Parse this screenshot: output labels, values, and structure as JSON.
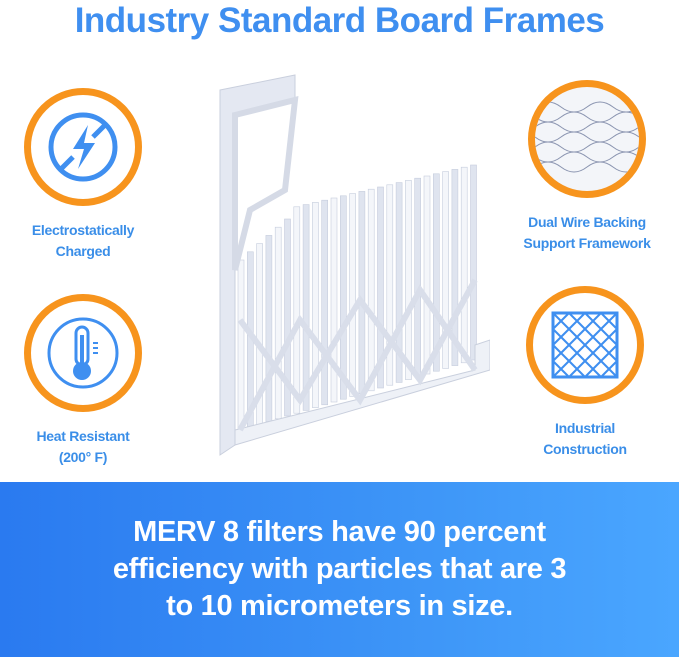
{
  "title": "Industry Standard Board Frames",
  "features": [
    {
      "icon": "no-static-icon",
      "line1": "Electrostatically",
      "line2": "Charged"
    },
    {
      "icon": "thermometer-icon",
      "line1": "Heat Resistant",
      "line2": "(200° F)"
    },
    {
      "icon": "wire-mesh-icon",
      "line1": "Dual Wire Backing",
      "line2": "Support Framework"
    },
    {
      "icon": "grid-frame-icon",
      "line1": "Industrial",
      "line2": "Construction"
    }
  ],
  "banner": {
    "line1": "MERV 8 filters have 90 percent",
    "line2": "efficiency with particles that are 3",
    "line3": "to 10 micrometers in size."
  },
  "colors": {
    "accent": "#3f8ff0",
    "ring": "#f7941d",
    "banner": "#2a7af0"
  }
}
